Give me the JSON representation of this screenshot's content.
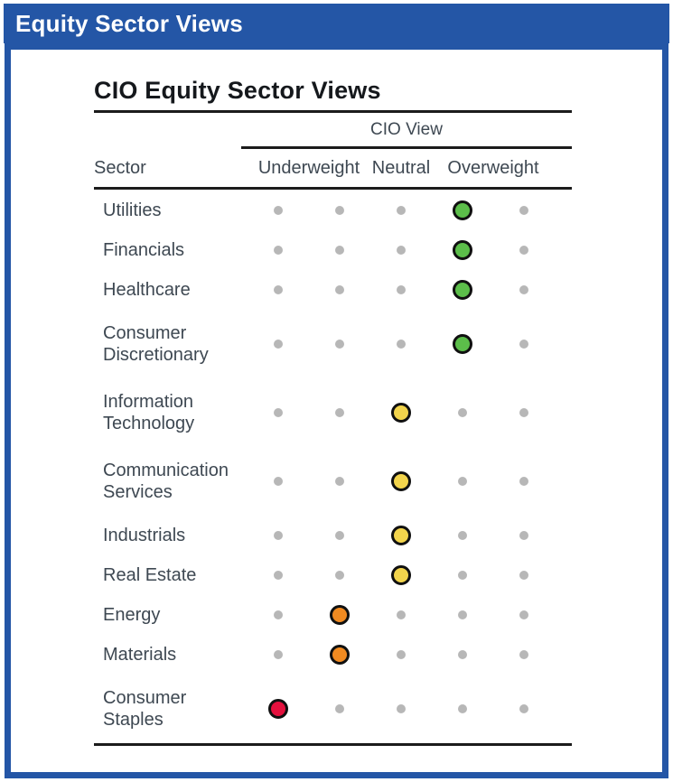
{
  "header": {
    "title": "Equity Sector Views"
  },
  "panel": {
    "title": "CIO Equity Sector Views",
    "group_label": "CIO View",
    "columns": {
      "sector": "Sector",
      "underweight": "Underweight",
      "neutral": "Neutral",
      "overweight": "Overweight"
    }
  },
  "colors": {
    "accent_blue": "#2456A6",
    "rule_black": "#1B1B1B",
    "title_text": "#15181C",
    "label_text": "#3E4852",
    "inactive_dot": "#B7B7B7",
    "markers": {
      "green": "#5CBE4A",
      "yellow": "#F2D44C",
      "orange": "#F08A21",
      "red": "#E3113E"
    }
  },
  "chart_data": {
    "type": "table",
    "title": "CIO Equity Sector Views",
    "scale": {
      "positions": 5,
      "column_headers": [
        "Underweight",
        "Neutral",
        "Overweight"
      ],
      "position_meaning": "1-2 Underweight, 3 Neutral, 4-5 Overweight"
    },
    "rows": [
      {
        "sector": "Utilities",
        "label_lines": [
          "Utilities"
        ],
        "position": 4,
        "view": "Overweight",
        "marker": "green"
      },
      {
        "sector": "Financials",
        "label_lines": [
          "Financials"
        ],
        "position": 4,
        "view": "Overweight",
        "marker": "green"
      },
      {
        "sector": "Healthcare",
        "label_lines": [
          "Healthcare"
        ],
        "position": 4,
        "view": "Overweight",
        "marker": "green"
      },
      {
        "sector": "Consumer Discretionary",
        "label_lines": [
          "Consumer",
          "Discretionary"
        ],
        "position": 4,
        "view": "Overweight",
        "marker": "green"
      },
      {
        "sector": "Information Technology",
        "label_lines": [
          "Information",
          "Technology"
        ],
        "position": 3,
        "view": "Neutral",
        "marker": "yellow"
      },
      {
        "sector": "Communication Services",
        "label_lines": [
          "Communication",
          "Services"
        ],
        "position": 3,
        "view": "Neutral",
        "marker": "yellow"
      },
      {
        "sector": "Industrials",
        "label_lines": [
          "Industrials"
        ],
        "position": 3,
        "view": "Neutral",
        "marker": "yellow"
      },
      {
        "sector": "Real Estate",
        "label_lines": [
          "Real Estate"
        ],
        "position": 3,
        "view": "Neutral",
        "marker": "yellow"
      },
      {
        "sector": "Energy",
        "label_lines": [
          "Energy"
        ],
        "position": 2,
        "view": "Underweight",
        "marker": "orange"
      },
      {
        "sector": "Materials",
        "label_lines": [
          "Materials"
        ],
        "position": 2,
        "view": "Underweight",
        "marker": "orange"
      },
      {
        "sector": "Consumer Staples",
        "label_lines": [
          "Consumer",
          "Staples"
        ],
        "position": 1,
        "view": "Underweight",
        "marker": "red"
      }
    ]
  }
}
